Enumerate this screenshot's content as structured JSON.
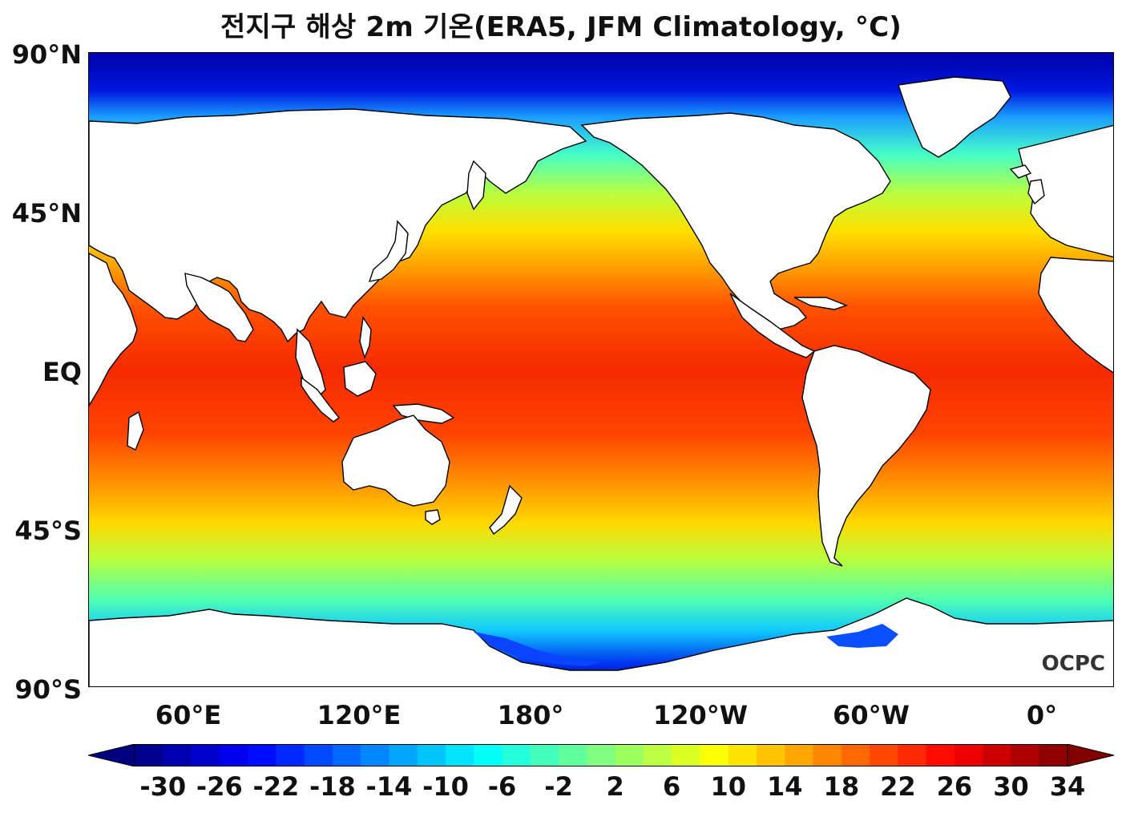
{
  "title": "전지구 해상 2m 기온(ERA5, JFM Climatology, °C)",
  "logo_text": "OCPC",
  "lat_labels": [
    "90°N",
    "45°N",
    "EQ",
    "45°S",
    "90°S"
  ],
  "lon_labels": [
    "60°E",
    "120°E",
    "180°",
    "120°W",
    "60°W",
    "0°"
  ],
  "colorbar": {
    "tick_labels": [
      "-30",
      "-26",
      "-22",
      "-18",
      "-14",
      "-10",
      "-6",
      "-2",
      "2",
      "6",
      "10",
      "14",
      "18",
      "22",
      "26",
      "30",
      "34"
    ],
    "min": -32,
    "max": 34,
    "step": 2,
    "extend": "both",
    "colormap": "jet"
  },
  "colors": {
    "land": "#ffffff",
    "coastline": "#000000"
  }
}
